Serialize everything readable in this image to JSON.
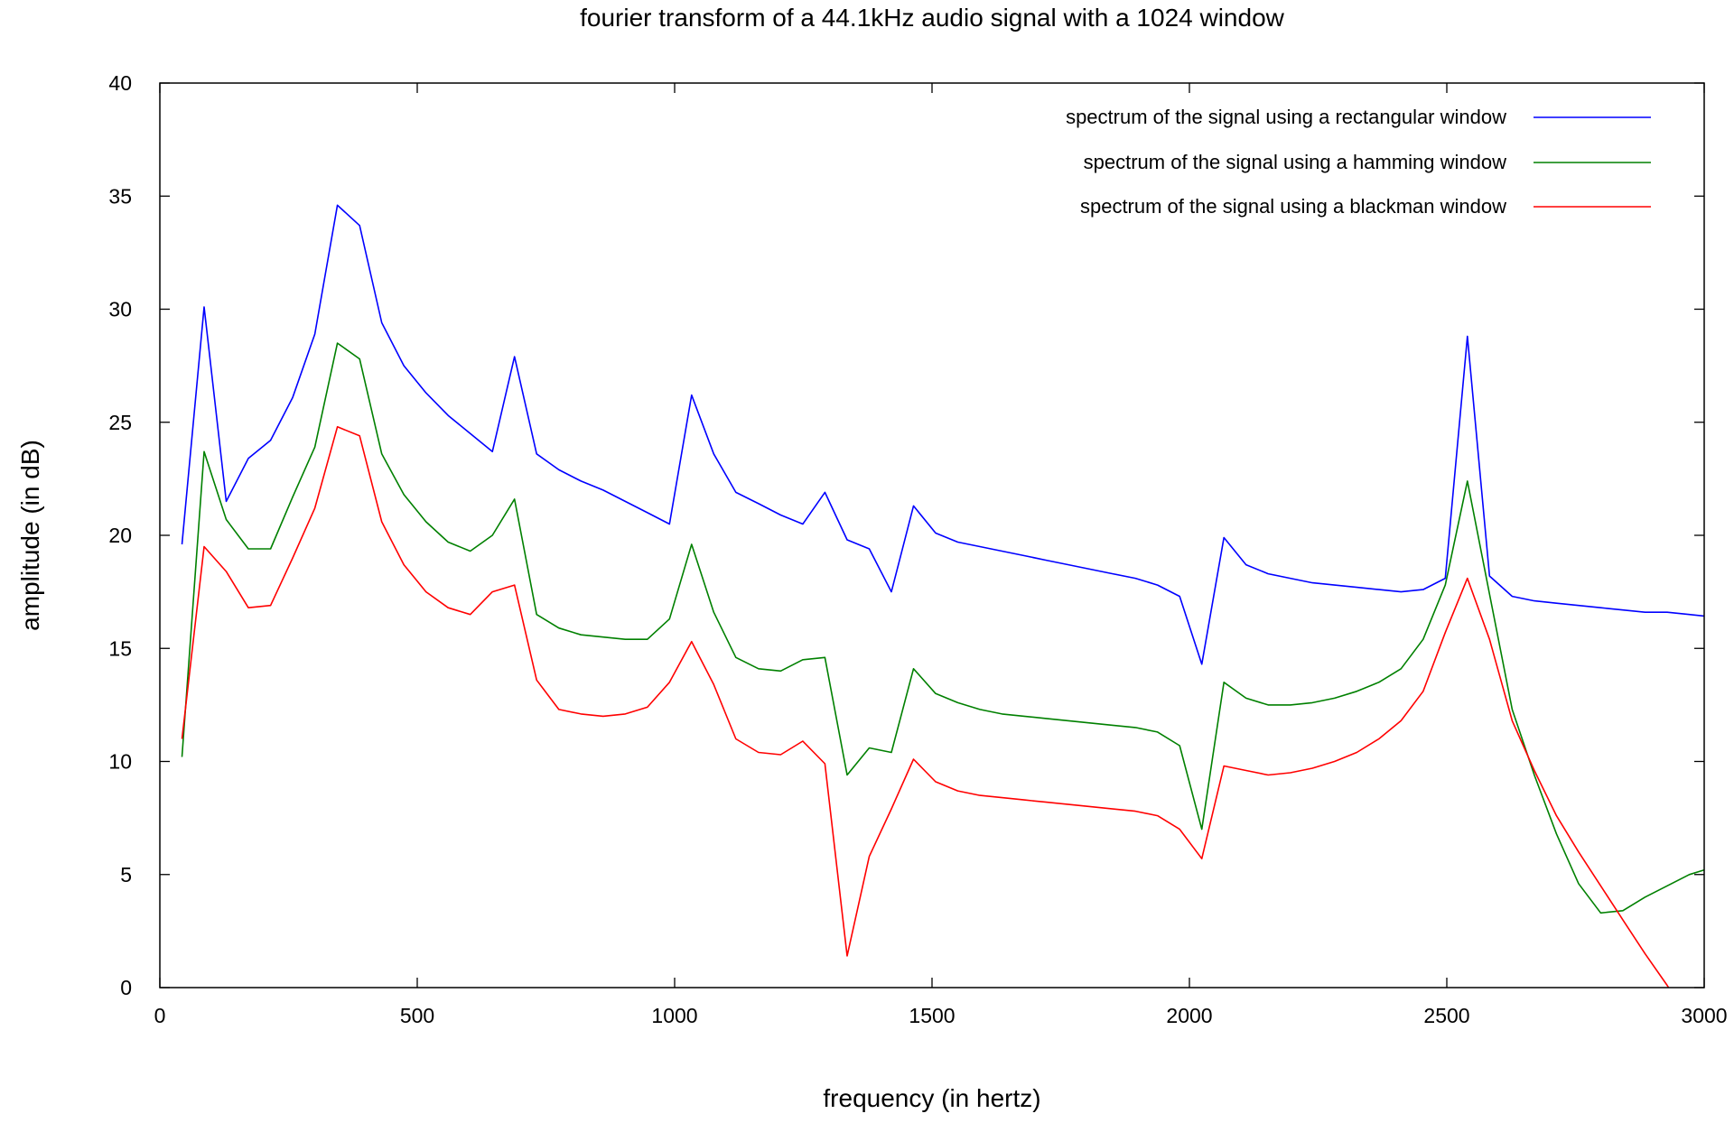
{
  "chart_data": {
    "type": "line",
    "title": "fourier transform of a 44.1kHz audio signal with a 1024 window",
    "xlabel": "frequency (in hertz)",
    "ylabel": "amplitude (in dB)",
    "xlim": [
      0,
      3000
    ],
    "ylim": [
      0,
      40
    ],
    "xticks": [
      "0",
      "500",
      "1000",
      "1500",
      "2000",
      "2500",
      "3000"
    ],
    "yticks": [
      "0",
      "5",
      "10",
      "15",
      "20",
      "25",
      "30",
      "35",
      "40"
    ],
    "grid": false,
    "legend_position": "top-right",
    "x": [
      43,
      86,
      129,
      172,
      215,
      258,
      301,
      345,
      388,
      431,
      474,
      517,
      560,
      603,
      646,
      689,
      732,
      775,
      818,
      861,
      904,
      947,
      990,
      1033,
      1076,
      1119,
      1163,
      1206,
      1249,
      1292,
      1335,
      1378,
      1421,
      1464,
      1507,
      1550,
      1593,
      1636,
      1679,
      1722,
      1765,
      1808,
      1851,
      1895,
      1938,
      1981,
      2024,
      2067,
      2110,
      2153,
      2196,
      2239,
      2282,
      2325,
      2368,
      2411,
      2454,
      2497,
      2540,
      2583,
      2627,
      2670,
      2713,
      2756,
      2799,
      2842,
      2885,
      2928,
      2971,
      3014
    ],
    "series": [
      {
        "name": "spectrum of the signal using a rectangular window",
        "color": "#0000ff",
        "values": [
          19.6,
          30.1,
          21.5,
          23.4,
          24.2,
          26.1,
          28.9,
          34.6,
          33.7,
          29.4,
          27.5,
          26.3,
          25.3,
          24.5,
          23.7,
          27.9,
          23.6,
          22.9,
          22.4,
          22.0,
          21.5,
          21.0,
          20.5,
          26.2,
          23.6,
          21.9,
          21.4,
          20.9,
          20.5,
          21.9,
          19.8,
          19.4,
          17.5,
          21.3,
          20.1,
          19.7,
          19.5,
          19.3,
          19.1,
          18.9,
          18.7,
          18.5,
          18.3,
          18.1,
          17.8,
          17.3,
          14.3,
          19.9,
          18.7,
          18.3,
          18.1,
          17.9,
          17.8,
          17.7,
          17.6,
          17.5,
          17.6,
          18.1,
          28.8,
          18.2,
          17.3,
          17.1,
          17.0,
          16.9,
          16.8,
          16.7,
          16.6,
          16.6,
          16.5,
          16.4
        ]
      },
      {
        "name": "spectrum of the signal using a hamming window",
        "color": "#008000",
        "values": [
          10.2,
          23.7,
          20.7,
          19.4,
          19.4,
          21.7,
          23.9,
          28.5,
          27.8,
          23.6,
          21.8,
          20.6,
          19.7,
          19.3,
          20.0,
          21.6,
          16.5,
          15.9,
          15.6,
          15.5,
          15.4,
          15.4,
          16.3,
          19.6,
          16.6,
          14.6,
          14.1,
          14.0,
          14.5,
          14.6,
          9.4,
          10.6,
          10.4,
          14.1,
          13.0,
          12.6,
          12.3,
          12.1,
          12.0,
          11.9,
          11.8,
          11.7,
          11.6,
          11.5,
          11.3,
          10.7,
          7.0,
          13.5,
          12.8,
          12.5,
          12.5,
          12.6,
          12.8,
          13.1,
          13.5,
          14.1,
          15.4,
          17.8,
          22.4,
          17.4,
          12.3,
          9.4,
          6.8,
          4.6,
          3.3,
          3.4,
          4.0,
          4.5,
          5.0,
          5.3
        ]
      },
      {
        "name": "spectrum of the signal using a blackman window",
        "color": "#ff0000",
        "values": [
          11.0,
          19.5,
          18.4,
          16.8,
          16.9,
          19.0,
          21.2,
          24.8,
          24.4,
          20.6,
          18.7,
          17.5,
          16.8,
          16.5,
          17.5,
          17.8,
          13.6,
          12.3,
          12.1,
          12.0,
          12.1,
          12.4,
          13.5,
          15.3,
          13.4,
          11.0,
          10.4,
          10.3,
          10.9,
          9.9,
          1.4,
          5.8,
          7.9,
          10.1,
          9.1,
          8.7,
          8.5,
          8.4,
          8.3,
          8.2,
          8.1,
          8.0,
          7.9,
          7.8,
          7.6,
          7.0,
          5.7,
          9.8,
          9.6,
          9.4,
          9.5,
          9.7,
          10.0,
          10.4,
          11.0,
          11.8,
          13.1,
          15.7,
          18.1,
          15.4,
          11.8,
          9.6,
          7.6,
          6.0,
          4.5,
          3.0,
          1.5,
          0.1,
          -1.5,
          -3.0
        ]
      }
    ]
  }
}
